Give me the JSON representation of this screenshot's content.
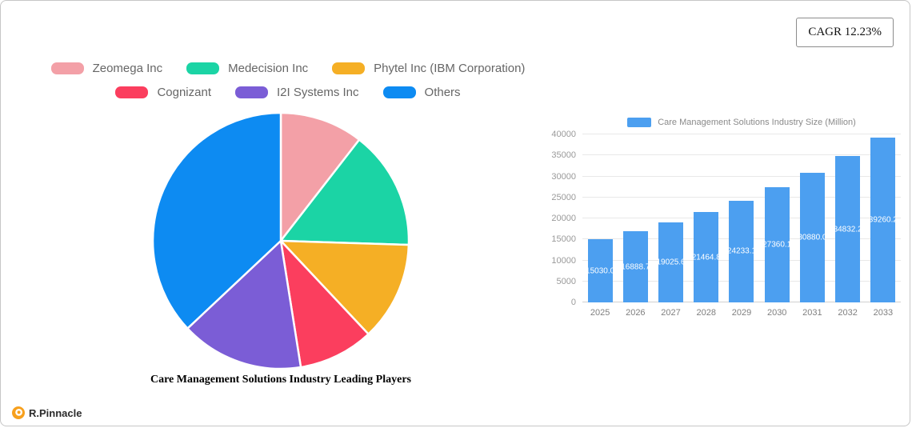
{
  "card": {
    "cagr_label": "CAGR 12.23%"
  },
  "brand": {
    "name": "R.Pinnacle"
  },
  "chart_data": [
    {
      "type": "pie",
      "title": "Care Management Solutions Industry Leading Players",
      "labels": [
        "Zeomega Inc",
        "Medecision Inc",
        "Phytel Inc  (IBM Corporation)",
        "Cognizant",
        "I2I Systems Inc",
        "Others"
      ],
      "values": [
        10.5,
        15,
        12.5,
        9.5,
        15.5,
        37
      ],
      "colors": [
        "#f3a0a7",
        "#1bd4a5",
        "#f5af25",
        "#fb3e5e",
        "#7b5dd6",
        "#0d8bf2"
      ],
      "legend_position": "top",
      "legend_rows": [
        3,
        3
      ]
    },
    {
      "type": "bar",
      "series_label": "Care Management Solutions Industry Size (Million)",
      "categories": [
        "2025",
        "2026",
        "2027",
        "2028",
        "2029",
        "2030",
        "2031",
        "2032",
        "2033"
      ],
      "values": [
        15030.0,
        16888.7,
        19025.6,
        21464.8,
        24233.1,
        27360.1,
        30880.0,
        34832.2,
        39260.2
      ],
      "color": "#4c9ff0",
      "ylim": [
        0,
        40000
      ],
      "ytick_step": 5000,
      "grid": true,
      "legend_position": "top"
    }
  ]
}
